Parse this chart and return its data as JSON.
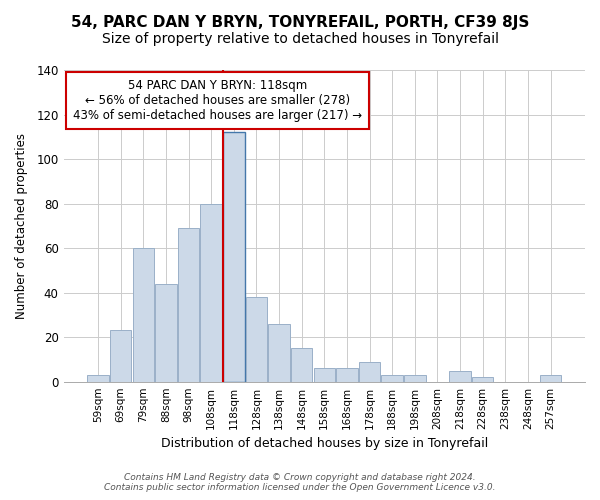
{
  "title": "54, PARC DAN Y BRYN, TONYREFAIL, PORTH, CF39 8JS",
  "subtitle": "Size of property relative to detached houses in Tonyrefail",
  "xlabel": "Distribution of detached houses by size in Tonyrefail",
  "ylabel": "Number of detached properties",
  "bar_labels": [
    "59sqm",
    "69sqm",
    "79sqm",
    "88sqm",
    "98sqm",
    "108sqm",
    "118sqm",
    "128sqm",
    "138sqm",
    "148sqm",
    "158sqm",
    "168sqm",
    "178sqm",
    "188sqm",
    "198sqm",
    "208sqm",
    "218sqm",
    "228sqm",
    "238sqm",
    "248sqm",
    "257sqm"
  ],
  "bar_values": [
    3,
    23,
    60,
    44,
    69,
    80,
    112,
    38,
    26,
    15,
    6,
    6,
    9,
    3,
    3,
    0,
    5,
    2,
    0,
    0,
    3
  ],
  "highlight_index": 6,
  "bar_color": "#ccd9e8",
  "bar_edge_color": "#9ab0c8",
  "highlight_bar_color": "#ccd9e8",
  "highlight_bar_edge_color": "#4477aa",
  "red_line_color": "#cc0000",
  "ylim": [
    0,
    140
  ],
  "yticks": [
    0,
    20,
    40,
    60,
    80,
    100,
    120,
    140
  ],
  "annotation_title": "54 PARC DAN Y BRYN: 118sqm",
  "annotation_line1": "← 56% of detached houses are smaller (278)",
  "annotation_line2": "43% of semi-detached houses are larger (217) →",
  "annotation_box_facecolor": "#ffffff",
  "annotation_box_edgecolor": "#cc0000",
  "footer_line1": "Contains HM Land Registry data © Crown copyright and database right 2024.",
  "footer_line2": "Contains public sector information licensed under the Open Government Licence v3.0.",
  "grid_color": "#cccccc",
  "bg_color": "#ffffff",
  "title_fontsize": 11,
  "subtitle_fontsize": 10
}
